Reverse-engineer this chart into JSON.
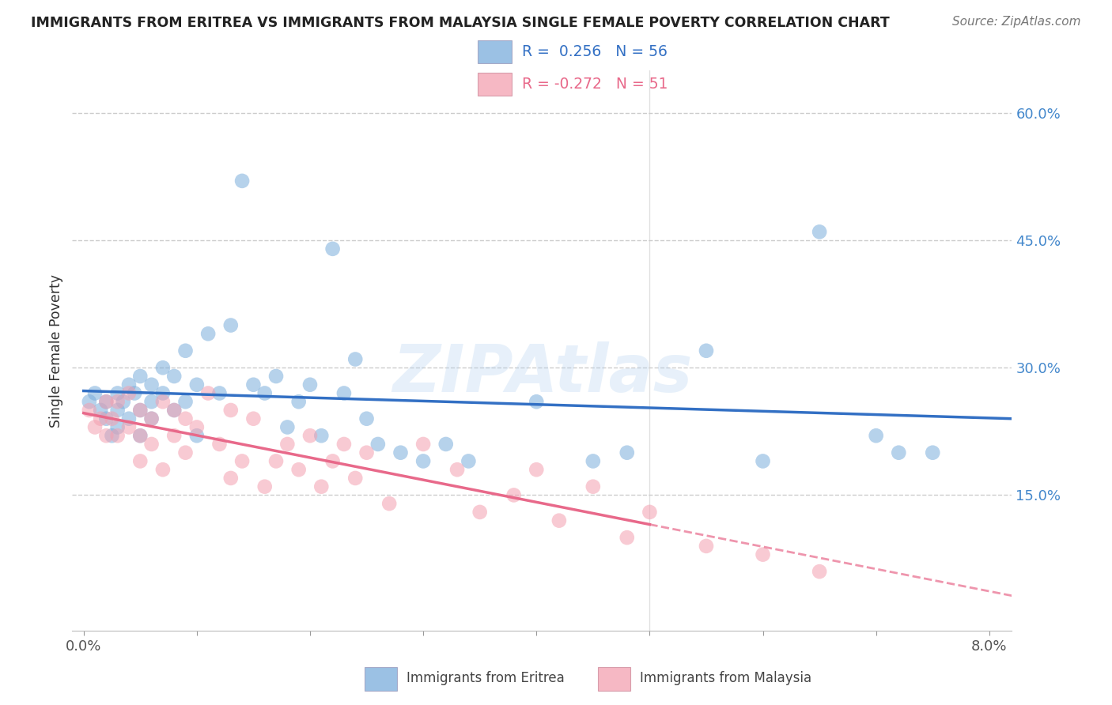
{
  "title": "IMMIGRANTS FROM ERITREA VS IMMIGRANTS FROM MALAYSIA SINGLE FEMALE POVERTY CORRELATION CHART",
  "source": "Source: ZipAtlas.com",
  "ylabel": "Single Female Poverty",
  "xlim": [
    -0.001,
    0.082
  ],
  "ylim": [
    -0.01,
    0.65
  ],
  "ytick_vals": [
    0.15,
    0.3,
    0.45,
    0.6
  ],
  "ytick_labels": [
    "15.0%",
    "30.0%",
    "45.0%",
    "60.0%"
  ],
  "xtick_vals": [
    0.0,
    0.01,
    0.02,
    0.03,
    0.04,
    0.05,
    0.06,
    0.07,
    0.08
  ],
  "xtick_labels_show": [
    "0.0%",
    "",
    "",
    "",
    "",
    "",
    "",
    "",
    "8.0%"
  ],
  "eritrea_color": "#7AADDB",
  "malaysia_color": "#F4A0B0",
  "eritrea_line_color": "#3370C4",
  "malaysia_line_color": "#E8698A",
  "eritrea_R": "0.256",
  "eritrea_N": "56",
  "malaysia_R": "-0.272",
  "malaysia_N": "51",
  "background_color": "#ffffff",
  "grid_color": "#cccccc",
  "watermark": "ZIPAtlas",
  "watermark_color": "#aaccee",
  "legend_eritrea": "Immigrants from Eritrea",
  "legend_malaysia": "Immigrants from Malaysia",
  "eritrea_x": [
    0.0005,
    0.001,
    0.0015,
    0.002,
    0.002,
    0.0025,
    0.003,
    0.003,
    0.003,
    0.0035,
    0.004,
    0.004,
    0.0045,
    0.005,
    0.005,
    0.005,
    0.006,
    0.006,
    0.006,
    0.007,
    0.007,
    0.008,
    0.008,
    0.009,
    0.009,
    0.01,
    0.01,
    0.011,
    0.012,
    0.013,
    0.014,
    0.015,
    0.016,
    0.017,
    0.018,
    0.019,
    0.02,
    0.021,
    0.022,
    0.023,
    0.024,
    0.025,
    0.026,
    0.028,
    0.03,
    0.032,
    0.034,
    0.04,
    0.045,
    0.048,
    0.055,
    0.06,
    0.065,
    0.07,
    0.072,
    0.075
  ],
  "eritrea_y": [
    0.26,
    0.27,
    0.25,
    0.26,
    0.24,
    0.22,
    0.25,
    0.27,
    0.23,
    0.26,
    0.28,
    0.24,
    0.27,
    0.25,
    0.29,
    0.22,
    0.26,
    0.28,
    0.24,
    0.3,
    0.27,
    0.25,
    0.29,
    0.32,
    0.26,
    0.28,
    0.22,
    0.34,
    0.27,
    0.35,
    0.52,
    0.28,
    0.27,
    0.29,
    0.23,
    0.26,
    0.28,
    0.22,
    0.44,
    0.27,
    0.31,
    0.24,
    0.21,
    0.2,
    0.19,
    0.21,
    0.19,
    0.26,
    0.19,
    0.2,
    0.32,
    0.19,
    0.46,
    0.22,
    0.2,
    0.2
  ],
  "malaysia_x": [
    0.0005,
    0.001,
    0.0015,
    0.002,
    0.002,
    0.0025,
    0.003,
    0.003,
    0.004,
    0.004,
    0.005,
    0.005,
    0.005,
    0.006,
    0.006,
    0.007,
    0.007,
    0.008,
    0.008,
    0.009,
    0.009,
    0.01,
    0.011,
    0.012,
    0.013,
    0.013,
    0.014,
    0.015,
    0.016,
    0.017,
    0.018,
    0.019,
    0.02,
    0.021,
    0.022,
    0.023,
    0.024,
    0.025,
    0.027,
    0.03,
    0.033,
    0.035,
    0.038,
    0.04,
    0.042,
    0.045,
    0.048,
    0.05,
    0.055,
    0.06,
    0.065
  ],
  "malaysia_y": [
    0.25,
    0.23,
    0.24,
    0.26,
    0.22,
    0.24,
    0.26,
    0.22,
    0.27,
    0.23,
    0.25,
    0.22,
    0.19,
    0.24,
    0.21,
    0.26,
    0.18,
    0.25,
    0.22,
    0.24,
    0.2,
    0.23,
    0.27,
    0.21,
    0.25,
    0.17,
    0.19,
    0.24,
    0.16,
    0.19,
    0.21,
    0.18,
    0.22,
    0.16,
    0.19,
    0.21,
    0.17,
    0.2,
    0.14,
    0.21,
    0.18,
    0.13,
    0.15,
    0.18,
    0.12,
    0.16,
    0.1,
    0.13,
    0.09,
    0.08,
    0.06
  ]
}
